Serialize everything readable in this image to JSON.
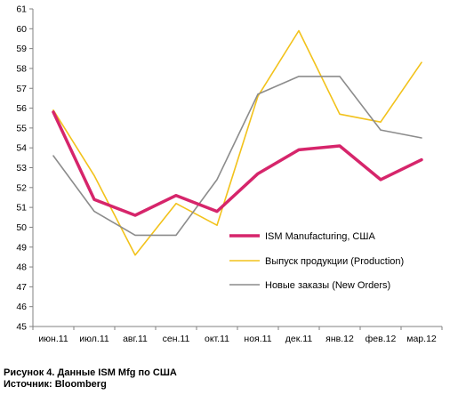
{
  "chart_data": {
    "type": "line",
    "categories": [
      "июн.11",
      "июл.11",
      "авг.11",
      "сен.11",
      "окт.11",
      "ноя.11",
      "дек.11",
      "янв.12",
      "фев.12",
      "мар.12"
    ],
    "ylim": [
      45,
      61
    ],
    "yticks": [
      45,
      46,
      47,
      48,
      49,
      50,
      51,
      52,
      53,
      54,
      55,
      56,
      57,
      58,
      59,
      60,
      61
    ],
    "grid": false,
    "legend_position": "lower-right",
    "series": [
      {
        "name": "ISM Manufacturing, США",
        "color": "#d6256b",
        "values": [
          55.8,
          51.4,
          50.6,
          51.6,
          50.8,
          52.7,
          53.9,
          54.1,
          52.4,
          53.4
        ]
      },
      {
        "name": "Выпуск продукции (Production)",
        "color": "#f2c21b",
        "values": [
          55.9,
          52.6,
          48.6,
          51.2,
          50.1,
          56.6,
          59.9,
          55.7,
          55.3,
          58.3
        ]
      },
      {
        "name": "Новые заказы (New Orders)",
        "color": "#8c8c8c",
        "values": [
          53.6,
          50.8,
          49.6,
          49.6,
          52.4,
          56.7,
          57.6,
          57.6,
          54.9,
          54.5
        ]
      }
    ]
  },
  "caption": {
    "line1": "Рисунок 4. Данные ISM Mfg по США",
    "line2": "Источник: Bloomberg"
  }
}
